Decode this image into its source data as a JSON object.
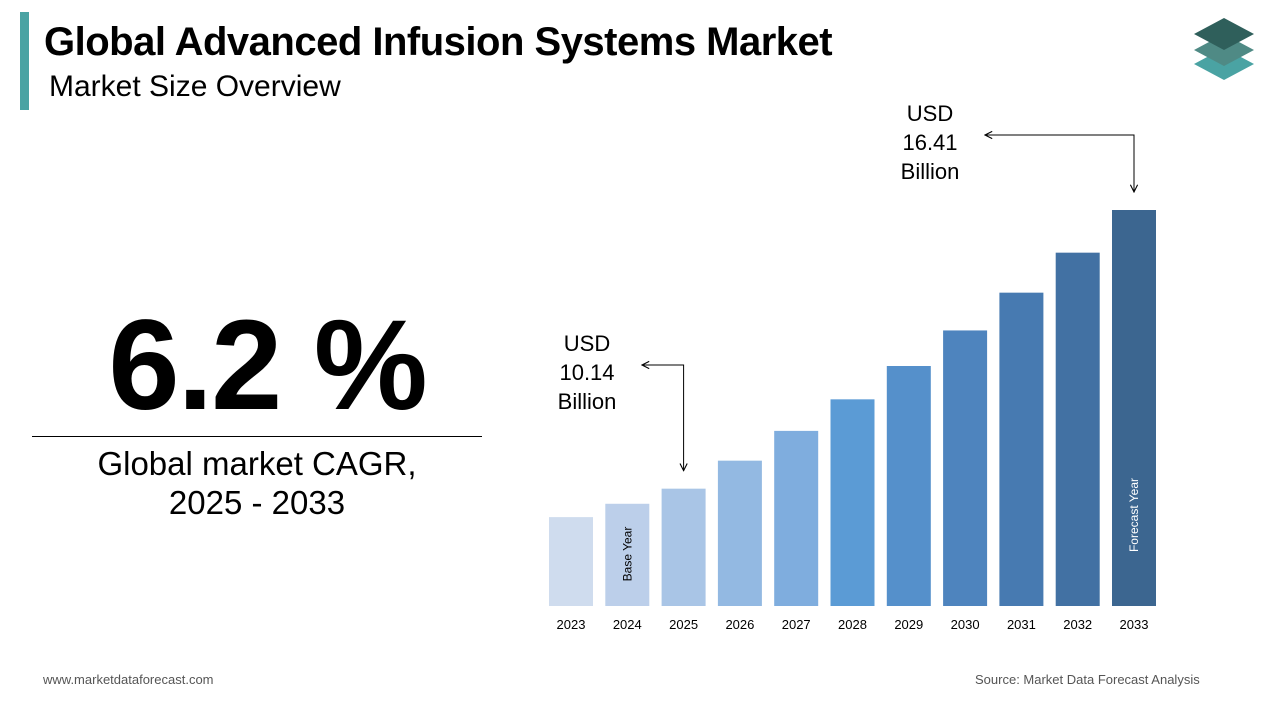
{
  "header": {
    "title": "Global Advanced Infusion Systems Market",
    "subtitle": "Market Size Overview"
  },
  "cagr": {
    "value": "6.2 %",
    "label_line1": "Global market CAGR,",
    "label_line2": "2025 - 2033"
  },
  "chart_data": {
    "type": "bar",
    "categories": [
      "2023",
      "2024",
      "2025",
      "2026",
      "2027",
      "2028",
      "2029",
      "2030",
      "2031",
      "2032",
      "2033"
    ],
    "values": [
      9.5,
      9.8,
      10.14,
      10.77,
      11.44,
      12.15,
      12.9,
      13.7,
      14.55,
      15.45,
      16.41
    ],
    "ylim": [
      7.5,
      16.41
    ],
    "grid": false,
    "colors": [
      "#cfdcee",
      "#bccfea",
      "#a9c5e6",
      "#93b9e2",
      "#7fadde",
      "#5b9bd5",
      "#5590cb",
      "#4e84be",
      "#477ab1",
      "#4271a3",
      "#3c6690"
    ],
    "bar_labels": {
      "2024": "Base Year",
      "2033": "Forecast Year"
    },
    "annotations": [
      {
        "year": "2025",
        "lines": [
          "USD",
          "10.14",
          "Billion"
        ]
      },
      {
        "year": "2033",
        "lines": [
          "USD",
          "16.41",
          "Billion"
        ]
      }
    ]
  },
  "footer": {
    "website": "www.marketdataforecast.com",
    "source": "Source: Market Data Forecast Analysis"
  },
  "colors": {
    "accent": "#4aa3a3",
    "logo_top": "#2f5f5b",
    "logo_mid": "#4f8a85",
    "logo_bottom": "#4aa3a3"
  }
}
